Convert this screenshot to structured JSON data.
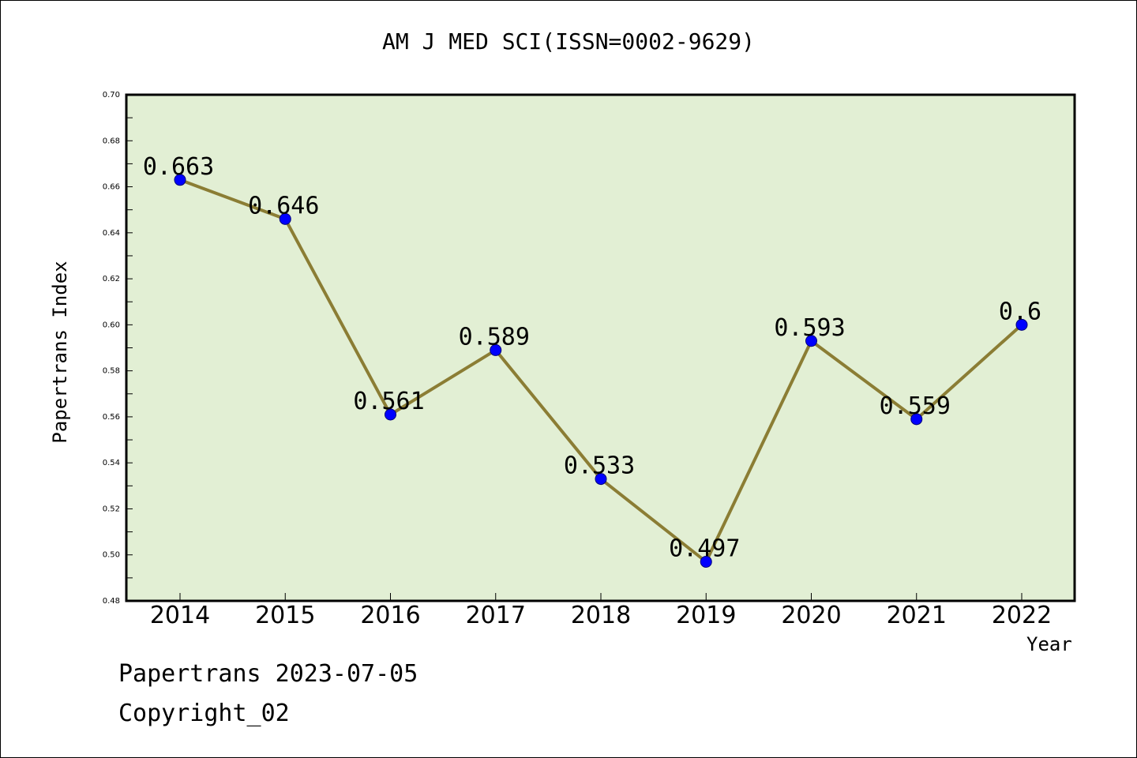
{
  "chart_data": {
    "type": "line",
    "title": "AM J MED SCI(ISSN=0002-9629)",
    "xlabel": "Year",
    "ylabel": "Papertrans Index",
    "categories": [
      "2014",
      "2015",
      "2016",
      "2017",
      "2018",
      "2019",
      "2020",
      "2021",
      "2022"
    ],
    "values": [
      0.663,
      0.646,
      0.561,
      0.589,
      0.533,
      0.497,
      0.593,
      0.559,
      0.6
    ],
    "data_labels": [
      "0.663",
      "0.646",
      "0.561",
      "0.589",
      "0.533",
      "0.497",
      "0.593",
      "0.559",
      "0.6"
    ],
    "ylim": [
      0.48,
      0.7
    ],
    "yticks": [
      "0.48",
      "0.50",
      "0.52",
      "0.54",
      "0.56",
      "0.58",
      "0.60",
      "0.62",
      "0.64",
      "0.66",
      "0.68",
      "0.70"
    ],
    "grid": false,
    "legend": "none",
    "colors": {
      "plot_background": "#e2efd4",
      "line": "#8b7d34",
      "marker": "#0000ff",
      "axis": "#000000"
    }
  },
  "footer": {
    "date_line": "Papertrans 2023-07-05",
    "copyright_line": "Copyright_02"
  }
}
